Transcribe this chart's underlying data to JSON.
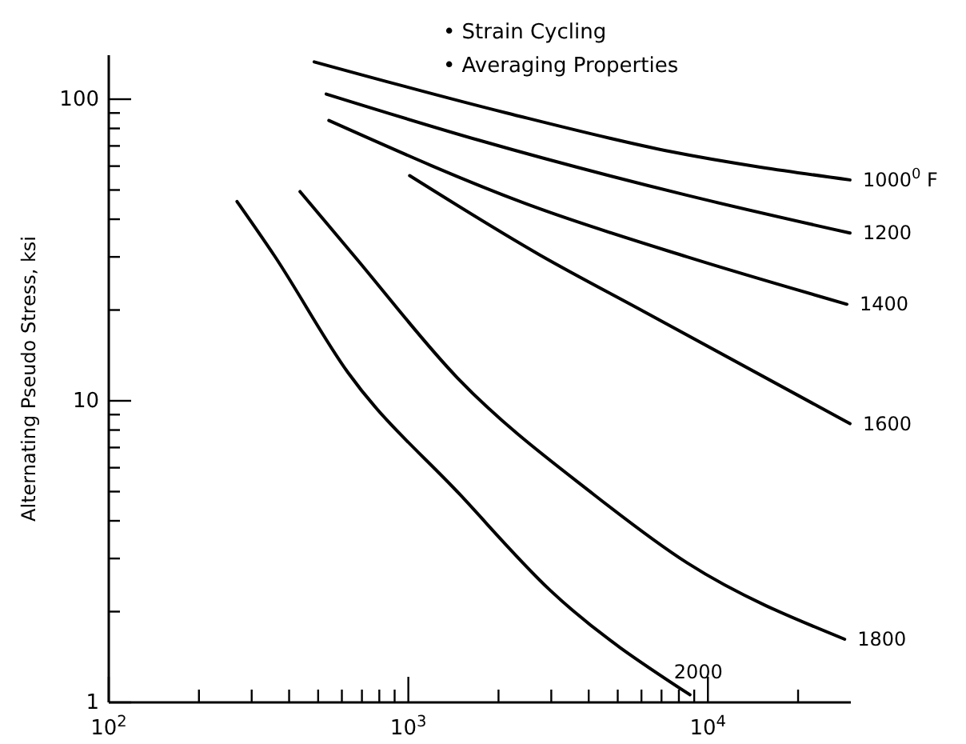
{
  "chart_data": {
    "type": "line",
    "ylabel": "Alternating Pseudo Stress, ksi",
    "log": "xy",
    "grid": false,
    "marker": "none",
    "line_style": "solid",
    "xlim": [
      100,
      30000
    ],
    "ylim": [
      1,
      140
    ],
    "xticks": [
      {
        "value": 100,
        "label": "10$^{2}$"
      },
      {
        "value": 200,
        "label": null
      },
      {
        "value": 300,
        "label": null
      },
      {
        "value": 400,
        "label": null
      },
      {
        "value": 500,
        "label": null
      },
      {
        "value": 600,
        "label": null
      },
      {
        "value": 700,
        "label": null
      },
      {
        "value": 800,
        "label": null
      },
      {
        "value": 900,
        "label": null
      },
      {
        "value": 1000,
        "label": "10$^{3}$"
      },
      {
        "value": 2000,
        "label": null
      },
      {
        "value": 3000,
        "label": null
      },
      {
        "value": 4000,
        "label": null
      },
      {
        "value": 5000,
        "label": null
      },
      {
        "value": 6000,
        "label": null
      },
      {
        "value": 7000,
        "label": null
      },
      {
        "value": 8000,
        "label": null
      },
      {
        "value": 9000,
        "label": null
      },
      {
        "value": 10000,
        "label": "10$^{4}$"
      },
      {
        "value": 20000,
        "label": null
      }
    ],
    "yticks": [
      1,
      {
        "value": 2,
        "label": null
      },
      {
        "value": 3,
        "label": null
      },
      {
        "value": 4,
        "label": null
      },
      {
        "value": 5,
        "label": null
      },
      {
        "value": 6,
        "label": null
      },
      {
        "value": 7,
        "label": null
      },
      {
        "value": 8,
        "label": null
      },
      {
        "value": 9,
        "label": null
      },
      10,
      {
        "value": 20,
        "label": null
      },
      {
        "value": 30,
        "label": null
      },
      {
        "value": 40,
        "label": null
      },
      {
        "value": 50,
        "label": null
      },
      {
        "value": 60,
        "label": null
      },
      {
        "value": 70,
        "label": null
      },
      {
        "value": 80,
        "label": null
      },
      {
        "value": 90,
        "label": null
      },
      100
    ],
    "annotations": [
      "• Strain Cycling",
      "• Averaging Properties"
    ],
    "series": [
      {
        "name": "1000$^{0}$ F",
        "color": "#000000",
        "x": [
          485,
          2130,
          7520,
          29800
        ],
        "values": [
          133,
          90,
          67,
          54
        ]
      },
      {
        "name": "1200",
        "color": "#000000",
        "x": [
          532,
          1730,
          8530,
          29800
        ],
        "values": [
          104,
          73,
          48,
          36
        ]
      },
      {
        "name": "1400",
        "color": "#000000",
        "x": [
          543,
          2630,
          8530,
          29100
        ],
        "values": [
          85,
          44,
          30,
          20.9
        ]
      },
      {
        "name": "1600",
        "color": "#000000",
        "x": [
          1010,
          2740,
          6100,
          29800
        ],
        "values": [
          55.8,
          30.5,
          19.8,
          8.4
        ]
      },
      {
        "name": "1800",
        "color": "#000000",
        "x": [
          435,
          658,
          1460,
          4170,
          8530,
          28600
        ],
        "values": [
          49.4,
          30.3,
          11.9,
          4.88,
          2.9,
          1.62
        ]
      },
      {
        "name": "2000",
        "color": "#000000",
        "x": [
          268,
          357,
          629,
          1490,
          2980,
          8710
        ],
        "values": [
          45.8,
          30.3,
          12.4,
          4.88,
          2.35,
          1.06
        ]
      }
    ]
  }
}
